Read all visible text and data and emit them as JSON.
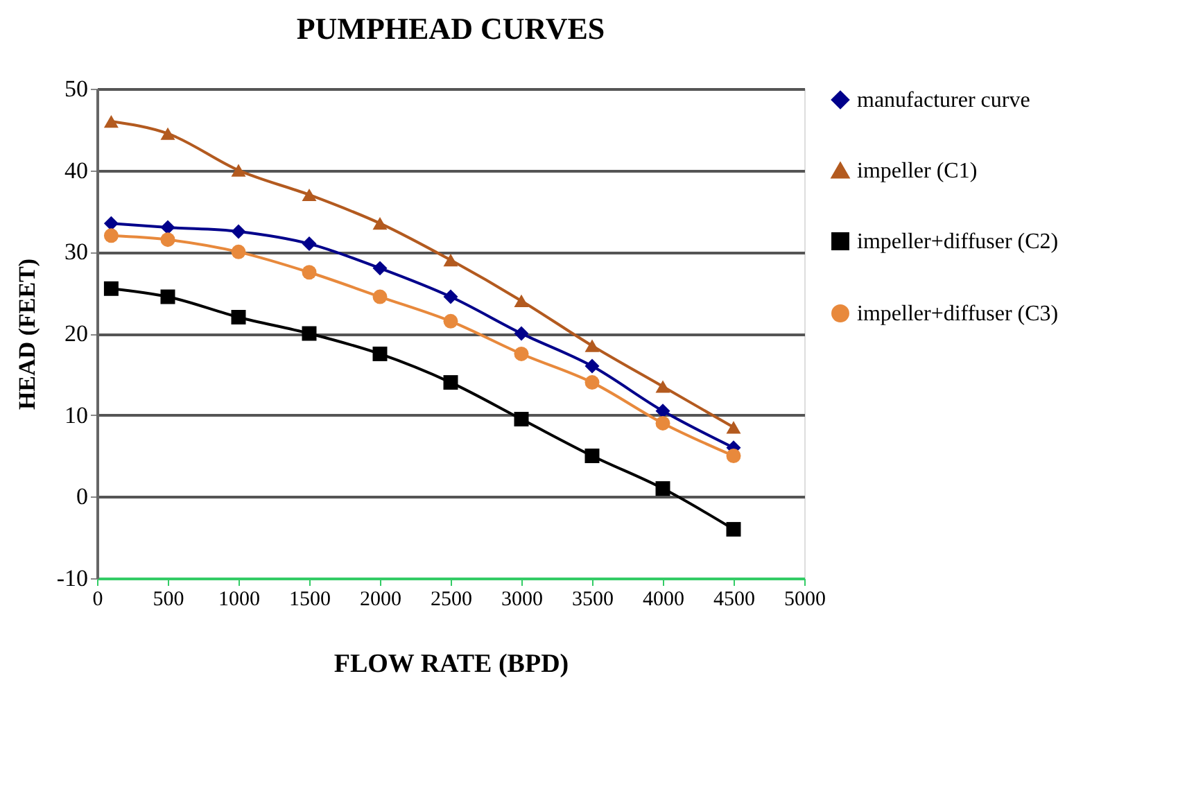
{
  "chart_data": {
    "type": "line",
    "title": "PUMPHEAD CURVES",
    "xlabel": "FLOW RATE (BPD)",
    "ylabel": "HEAD (FEET)",
    "x": [
      100,
      500,
      1000,
      1500,
      2000,
      2500,
      3000,
      3500,
      4000,
      4500
    ],
    "series": [
      {
        "name": "manufacturer curve",
        "color": "#00008b",
        "marker": "diamond",
        "values": [
          33.5,
          33,
          32.5,
          31,
          28,
          24.5,
          20,
          16,
          10.5,
          6
        ]
      },
      {
        "name": "impeller (C1)",
        "color": "#b35a1f",
        "marker": "triangle",
        "values": [
          46,
          44.5,
          40,
          37,
          33.5,
          29,
          24,
          18.5,
          13.5,
          8.5
        ]
      },
      {
        "name": "impeller+diffuser (C2)",
        "color": "#000000",
        "marker": "square",
        "values": [
          25.5,
          24.5,
          22,
          20,
          17.5,
          14,
          9.5,
          5,
          1,
          -4
        ]
      },
      {
        "name": "impeller+diffuser (C3)",
        "color": "#e8893c",
        "marker": "circle",
        "values": [
          32,
          31.5,
          30,
          27.5,
          24.5,
          21.5,
          17.5,
          14,
          9,
          5
        ]
      }
    ],
    "xlim": [
      0,
      5000
    ],
    "xticks": [
      0,
      500,
      1000,
      1500,
      2000,
      2500,
      3000,
      3500,
      4000,
      4500,
      5000
    ],
    "ylim": [
      -10,
      50
    ],
    "yticks": [
      -10,
      0,
      10,
      20,
      30,
      40,
      50
    ],
    "grid": "y",
    "legend": "right",
    "line_style": "solid"
  }
}
